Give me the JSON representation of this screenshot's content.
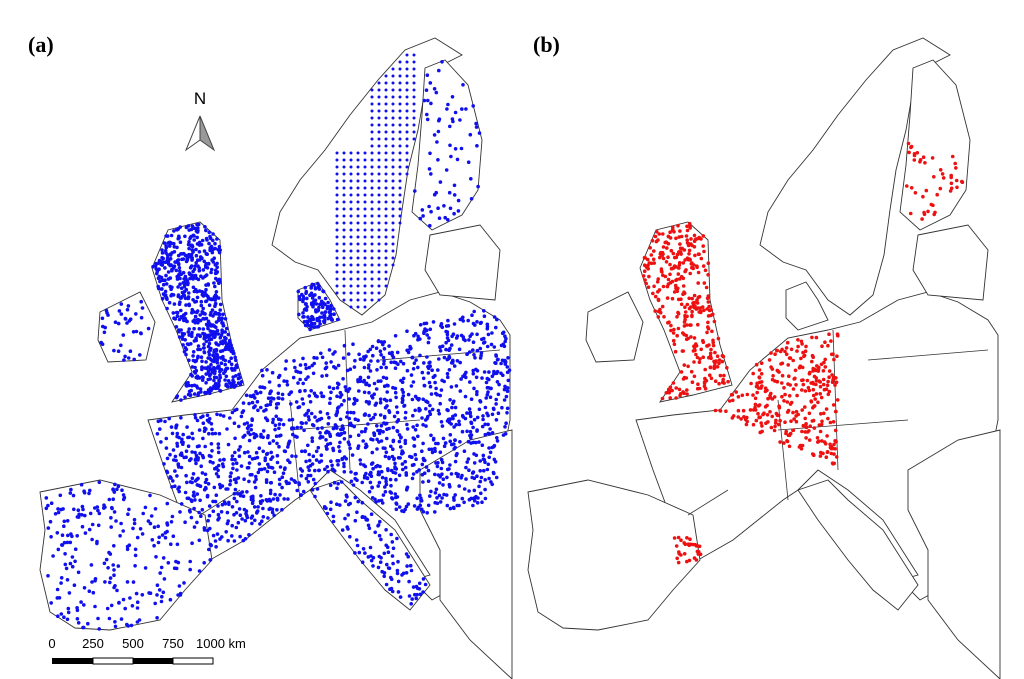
{
  "panels": [
    {
      "label": "(a)"
    },
    {
      "label": "(b)"
    }
  ],
  "north_arrow": {
    "label": "N"
  },
  "scale_bar": {
    "labels": [
      "0",
      "250",
      "500",
      "750",
      "1000 km"
    ]
  }
}
